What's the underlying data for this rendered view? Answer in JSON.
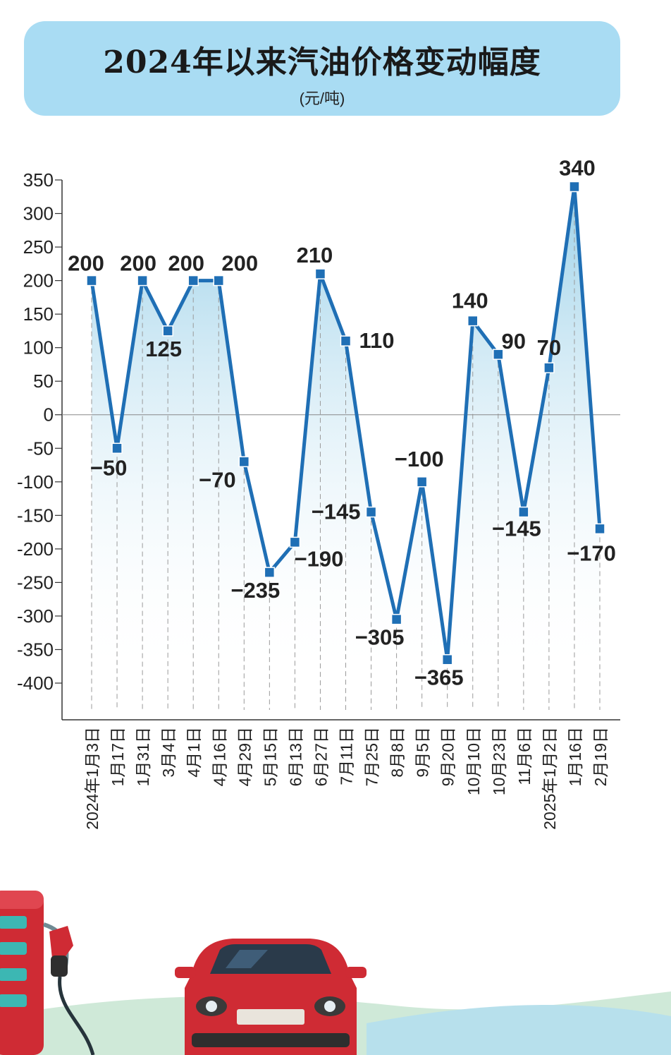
{
  "header": {
    "title": "2024年以来汽油价格变动幅度",
    "unit": "(元/吨)"
  },
  "colors": {
    "line": "#1f6fb5",
    "marker": "#1f6fb5",
    "title_bg": "#a9dcf3",
    "area_top": "#9fd3ea",
    "grid": "#9a9a9a"
  },
  "chart_data": {
    "type": "line",
    "title": "2024年以来汽油价格变动幅度",
    "ylabel": "(元/吨)",
    "xlabel": "",
    "ylim": [
      -400,
      350
    ],
    "yticks": [
      350,
      300,
      250,
      200,
      150,
      100,
      50,
      0,
      -50,
      -100,
      -150,
      -200,
      -250,
      -300,
      -350,
      -400
    ],
    "ytick_labels": [
      "350",
      "300",
      "250",
      "200",
      "150",
      "100",
      "50",
      "0",
      "-50",
      "-100",
      "-150",
      "-200",
      "-250",
      "-300",
      "-350",
      "-400"
    ],
    "categories": [
      "2024年1月3日",
      "1月17日",
      "1月31日",
      "3月4日",
      "4月1日",
      "4月16日",
      "4月29日",
      "5月15日",
      "6月13日",
      "6月27日",
      "7月11日",
      "7月25日",
      "8月8日",
      "9月5日",
      "9月20日",
      "10月10日",
      "10月23日",
      "11月6日",
      "2025年1月2日",
      "1月16日",
      "2月19日"
    ],
    "series": [
      {
        "values": [
          200,
          -50,
          200,
          125,
          200,
          200,
          -70,
          -235,
          -190,
          210,
          110,
          -145,
          -305,
          -100,
          -365,
          140,
          90,
          -145,
          70,
          340,
          -170
        ]
      }
    ],
    "data_labels": [
      "200",
      "−50",
      "200",
      "125",
      "200",
      "200",
      "−70",
      "−235",
      "−190",
      "210",
      "110",
      "−145",
      "−305",
      "−100",
      "−365",
      "140",
      "90",
      "−145",
      "70",
      "340",
      "−170"
    ],
    "grid": "vertical dashed lines at each category",
    "legend": "none"
  }
}
